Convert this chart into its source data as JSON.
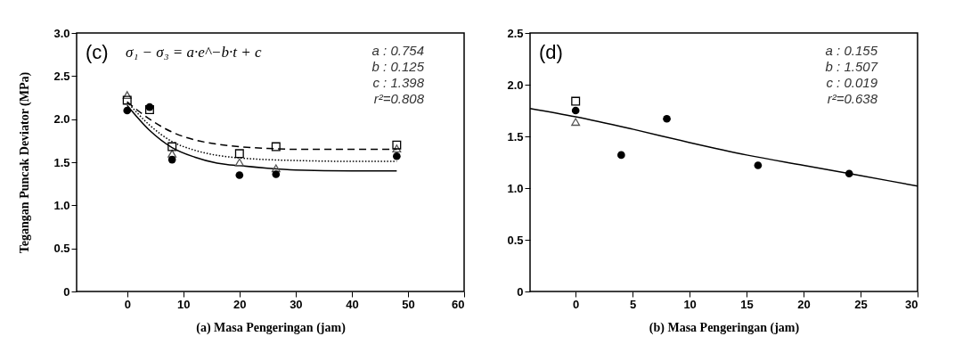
{
  "chart_data": [
    {
      "type": "scatter",
      "xlabel": "(a)   Masa Pengeringan (jam)",
      "ylabel": "Tegangan Puncak Deviator (MPa)",
      "xlim": [
        -9,
        60
      ],
      "xticks": [
        0,
        10,
        20,
        30,
        40,
        50,
        60
      ],
      "ylim": [
        0,
        3
      ],
      "yticks": [
        0,
        0.5,
        {
          "value": 1,
          "label": "1.0"
        },
        1.5,
        {
          "value": 2,
          "label": "2.0"
        },
        2.5,
        {
          "value": 3,
          "label": "3.0"
        }
      ],
      "series": [
        {
          "type": "line",
          "line_style": "solid",
          "color": "#000000",
          "x": [
            0,
            4,
            8,
            12,
            16,
            20,
            25,
            30,
            40,
            48
          ],
          "values": [
            2.16,
            1.87,
            1.67,
            1.56,
            1.49,
            1.46,
            1.43,
            1.41,
            1.4,
            1.4
          ]
        },
        {
          "type": "line",
          "line_style": "dotted",
          "color": "#000000",
          "x": [
            0,
            4,
            8,
            12,
            16,
            20,
            25,
            30,
            40,
            48
          ],
          "values": [
            2.2,
            1.93,
            1.74,
            1.64,
            1.58,
            1.55,
            1.53,
            1.52,
            1.51,
            1.51
          ]
        },
        {
          "type": "line",
          "line_style": "dashed",
          "color": "#000000",
          "x": [
            0,
            4,
            8,
            12,
            16,
            20,
            25,
            30,
            40,
            48
          ],
          "values": [
            2.2,
            2.0,
            1.85,
            1.76,
            1.71,
            1.68,
            1.66,
            1.65,
            1.65,
            1.65
          ]
        },
        {
          "marker": "triangle",
          "color": "#555555",
          "x": [
            0,
            4,
            8,
            20,
            26.5,
            48
          ],
          "values": [
            2.28,
            null,
            1.6,
            1.5,
            1.43,
            1.66
          ]
        },
        {
          "marker": "circle",
          "color": "#000000",
          "x": [
            0,
            4,
            8,
            20,
            26.5,
            48
          ],
          "values": [
            2.1,
            2.14,
            1.53,
            1.35,
            1.36,
            1.57
          ]
        },
        {
          "marker": "square",
          "color": "#000000",
          "x": [
            0,
            4,
            8,
            20,
            26.5,
            48
          ],
          "values": [
            2.22,
            2.11,
            1.68,
            1.6,
            1.68,
            1.7
          ]
        }
      ],
      "annotations": [
        "(c)",
        "σ₁ − σ₃ = a·e^−b·t + c",
        "a : 0.754",
        "b : 0.125",
        "c : 1.398",
        "r²=0.808"
      ]
    },
    {
      "type": "scatter",
      "xlabel": "(b)  Masa Pengeringan (jam)",
      "xlim": [
        -4,
        30
      ],
      "xticks": [
        0,
        5,
        10,
        15,
        20,
        25,
        30
      ],
      "ylim": [
        0,
        2.5
      ],
      "yticks": [
        0,
        0.5,
        {
          "value": 1,
          "label": "1.0"
        },
        1.5,
        {
          "value": 2,
          "label": "2.0"
        },
        2.5
      ],
      "series": [
        {
          "type": "line",
          "line_style": "solid",
          "color": "#000000",
          "x": [
            -4,
            0,
            5,
            10,
            15,
            20,
            25,
            30
          ],
          "values": [
            1.77,
            1.69,
            1.57,
            1.44,
            1.32,
            1.22,
            1.12,
            1.02
          ]
        },
        {
          "marker": "square",
          "color": "#000000",
          "x": [
            0
          ],
          "values": [
            1.84
          ]
        },
        {
          "marker": "triangle",
          "color": "#555555",
          "x": [
            0
          ],
          "values": [
            1.64
          ]
        },
        {
          "marker": "circle",
          "color": "#000000",
          "x": [
            0,
            4,
            8,
            16,
            24
          ],
          "values": [
            1.75,
            1.32,
            1.67,
            1.22,
            1.14
          ]
        }
      ],
      "annotations": [
        "(d)",
        "a : 0.155",
        "b : 1.507",
        "c : 0.019",
        "r²=0.638"
      ]
    }
  ]
}
